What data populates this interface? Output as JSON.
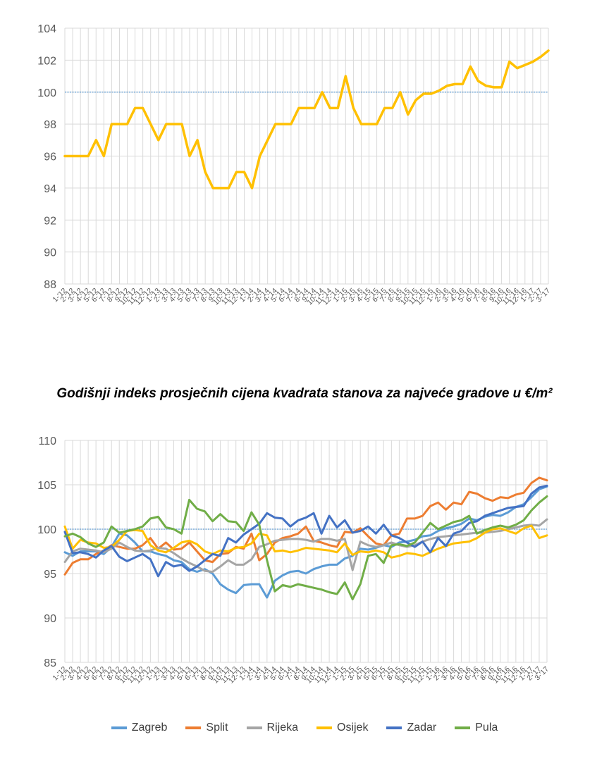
{
  "chart_data": [
    {
      "type": "line",
      "title": "",
      "xlabel": "",
      "ylabel": "",
      "ylim": [
        88,
        104
      ],
      "yticks": [
        88,
        90,
        92,
        94,
        96,
        98,
        100,
        102,
        104
      ],
      "grid": true,
      "reference_line": 100,
      "colors": {
        "series": "#ffc000",
        "reference": "#5b9bd5",
        "grid": "#d9d9d9",
        "axis_text": "#595959"
      },
      "x_tick_labels": [
        "1-'12",
        "2-'12",
        "3-'12",
        "4-'12",
        "5-'12",
        "6-'12",
        "7-'12",
        "8-'12",
        "9-'12",
        "10-'12",
        "11-'12",
        "12-'12",
        "1-'13",
        "2-'13",
        "3-'13",
        "4-'13",
        "5-'13",
        "6-'13",
        "7-'13",
        "8-'13",
        "9-'13",
        "10-'13",
        "11-'13",
        "12-'13",
        "1-'14",
        "2-'14",
        "3-'14",
        "4-'14",
        "5-'14",
        "6-'14",
        "7-'14",
        "8-'14",
        "9-'14",
        "10-'14",
        "11-'14",
        "12-'14",
        "1-'15",
        "2-'15",
        "3-'15",
        "4-'15",
        "5-'15",
        "6-'15",
        "7-'15",
        "8-'15",
        "9-'15",
        "10-'15",
        "11-'15",
        "12-'15",
        "1-'16",
        "2-'16",
        "3-'16",
        "4-'16",
        "5-'16",
        "6-'16",
        "7-'16",
        "8-'16",
        "9-'16",
        "10-'16",
        "11-'16",
        "12-'16",
        "1-'17",
        "2-'17",
        "3-'17"
      ],
      "series": [
        {
          "values": [
            96,
            96,
            96,
            96,
            97,
            96,
            98,
            98,
            98,
            99,
            99,
            98,
            97,
            98,
            98,
            98,
            96,
            97,
            95,
            94,
            94,
            94,
            95,
            95,
            94,
            96,
            97,
            98,
            98,
            98,
            99,
            99,
            99,
            100,
            99,
            99,
            101,
            99,
            98,
            98,
            98,
            99,
            99,
            100,
            98.6,
            99.5,
            99.9,
            99.9,
            100.1,
            100.4,
            100.5,
            100.5,
            101.6,
            100.7,
            100.4,
            100.3,
            100.3,
            101.9,
            101.5,
            101.7,
            101.9,
            102.2,
            102.6
          ]
        }
      ]
    },
    {
      "type": "line",
      "title": "Godišnji indeks prosječnih cijena kvadrata stanova za najveće gradove u €/m²",
      "xlabel": "",
      "ylabel": "",
      "ylim": [
        85,
        110
      ],
      "yticks": [
        85,
        90,
        95,
        100,
        105,
        110
      ],
      "grid": true,
      "reference_line": 100,
      "legend_position": "bottom",
      "x_tick_labels": [
        "1-'12",
        "2-'12",
        "3-'12",
        "4-'12",
        "5-'12",
        "6-'12",
        "7-'12",
        "8-'12",
        "9-'12",
        "10-'12",
        "11-'12",
        "12-'12",
        "1-'13",
        "2-'13",
        "3-'13",
        "4-'13",
        "5-'13",
        "6-'13",
        "7-'13",
        "8-'13",
        "9-'13",
        "10-'13",
        "11-'13",
        "12-'13",
        "1-'14",
        "2-'14",
        "3-'14",
        "4-'14",
        "5-'14",
        "6-'14",
        "7-'14",
        "8-'14",
        "9-'14",
        "10-'14",
        "11-'14",
        "12-'14",
        "1-'15",
        "2-'15",
        "3-'15",
        "4-'15",
        "5-'15",
        "6-'15",
        "7-'15",
        "8-'15",
        "9-'15",
        "10-'15",
        "11-'15",
        "12-'15",
        "1-'16",
        "2-'16",
        "3-'16",
        "4-'16",
        "5-'16",
        "6-'16",
        "7-'16",
        "8-'16",
        "9-'16",
        "10-'16",
        "11-'16",
        "12-'16",
        "1-'17",
        "2-'17",
        "3-'17"
      ],
      "series": [
        {
          "name": "Zagreb",
          "color": "#5b9bd5",
          "values": [
            97.4,
            97,
            97.5,
            97.5,
            97.5,
            97.2,
            98,
            99.5,
            99.3,
            98.5,
            97.5,
            97.5,
            97.2,
            97,
            96.5,
            96.3,
            95.5,
            95.2,
            95.5,
            95,
            93.8,
            93.2,
            92.8,
            93.7,
            93.8,
            93.8,
            92.3,
            94.2,
            94.8,
            95.2,
            95.3,
            95.0,
            95.5,
            95.8,
            96.0,
            96.0,
            96.7,
            97.0,
            97.8,
            97.7,
            97.9,
            98.2,
            98.0,
            98.5,
            98.6,
            98.8,
            99.2,
            99.3,
            99.8,
            100.1,
            100.3,
            100.6,
            101.2,
            101.0,
            101.4,
            101.6,
            101.5,
            101.9,
            102.5,
            102.8,
            103.6,
            104.5,
            104.8
          ]
        },
        {
          "name": "Split",
          "color": "#ed7d31",
          "values": [
            94.9,
            96.2,
            96.6,
            96.6,
            97.2,
            97.6,
            98.2,
            98.0,
            97.8,
            97.8,
            98.2,
            99.0,
            97.8,
            98.5,
            97.7,
            97.8,
            98.5,
            97.5,
            96.5,
            96.3,
            97.2,
            97.3,
            98.0,
            97.8,
            99.5,
            96.5,
            97.2,
            98.5,
            99.0,
            99.2,
            99.5,
            100.3,
            98.7,
            98.5,
            98.2,
            98.0,
            99.7,
            99.6,
            100.1,
            99.2,
            98.4,
            98.2,
            99.3,
            99.5,
            101.2,
            101.2,
            101.5,
            102.6,
            103.0,
            102.2,
            103.0,
            102.8,
            104.2,
            104.0,
            103.5,
            103.2,
            103.6,
            103.5,
            103.9,
            104.1,
            105.2,
            105.8,
            105.5
          ]
        },
        {
          "name": "Rijeka",
          "color": "#a5a5a5",
          "values": [
            96.3,
            97.5,
            97.8,
            97.7,
            97.6,
            97.4,
            97.8,
            98.5,
            98.0,
            97.6,
            97.5,
            97.6,
            97.9,
            97.8,
            97.3,
            96.7,
            96.2,
            95.8,
            95.3,
            95.2,
            95.8,
            96.5,
            96.0,
            96.0,
            96.6,
            98.0,
            98.3,
            98.7,
            98.8,
            98.9,
            98.9,
            98.8,
            98.6,
            98.9,
            98.9,
            98.7,
            98.9,
            95.4,
            98.6,
            98.2,
            98.0,
            98.2,
            98.5,
            98.2,
            98.0,
            98.2,
            98.6,
            98.9,
            99.1,
            99.2,
            99.3,
            99.4,
            99.5,
            99.6,
            99.6,
            99.7,
            99.8,
            100.0,
            100.2,
            100.4,
            100.5,
            100.4,
            101.1
          ]
        },
        {
          "name": "Osijek",
          "color": "#ffc000",
          "values": [
            100.3,
            97.8,
            98.8,
            98.5,
            98.4,
            97.9,
            98.0,
            98.8,
            99.8,
            99.9,
            99.8,
            98.2,
            97.6,
            97.4,
            97.9,
            98.5,
            98.7,
            98.3,
            97.5,
            97.2,
            97.6,
            97.5,
            97.9,
            98.0,
            98.4,
            99.5,
            99.3,
            97.5,
            97.6,
            97.4,
            97.6,
            97.9,
            97.8,
            97.7,
            97.6,
            97.4,
            98.4,
            97.1,
            97.5,
            97.4,
            97.6,
            97.4,
            96.8,
            97.0,
            97.3,
            97.2,
            97.0,
            97.4,
            97.8,
            98.1,
            98.4,
            98.5,
            98.6,
            99.0,
            99.6,
            100.0,
            100.1,
            99.8,
            99.5,
            100.1,
            100.4,
            99.0,
            99.3
          ]
        },
        {
          "name": "Zadar",
          "color": "#4472c4",
          "values": [
            99.7,
            97.3,
            97.4,
            97.2,
            96.8,
            97.6,
            98.1,
            96.9,
            96.4,
            96.8,
            97.2,
            96.6,
            94.7,
            96.3,
            95.8,
            96.0,
            95.3,
            95.8,
            96.5,
            97.2,
            97.0,
            99.0,
            98.5,
            99.4,
            100.0,
            100.6,
            101.8,
            101.3,
            101.2,
            100.3,
            101.0,
            101.3,
            101.8,
            99.5,
            101.5,
            100.2,
            101.0,
            99.6,
            99.8,
            100.3,
            99.5,
            100.5,
            99.3,
            99.0,
            98.5,
            98.0,
            98.6,
            97.4,
            99.0,
            98.1,
            99.5,
            99.8,
            100.7,
            100.9,
            101.5,
            101.8,
            102.1,
            102.4,
            102.5,
            102.6,
            104.0,
            104.7,
            104.9
          ]
        },
        {
          "name": "Pula",
          "color": "#70ad47",
          "values": [
            99.2,
            99.5,
            99.1,
            98.4,
            98.0,
            98.5,
            100.3,
            99.6,
            99.8,
            100.0,
            100.3,
            101.2,
            101.4,
            100.2,
            100.0,
            99.5,
            103.3,
            102.3,
            102.0,
            100.9,
            101.7,
            100.9,
            100.8,
            99.8,
            101.9,
            100.5,
            96.5,
            93.0,
            93.7,
            93.5,
            93.8,
            93.6,
            93.4,
            93.2,
            92.9,
            92.7,
            94.0,
            92.1,
            93.8,
            97.0,
            97.2,
            96.2,
            98.2,
            98.3,
            98.1,
            98.5,
            99.6,
            100.7,
            100.0,
            100.4,
            100.8,
            101.0,
            101.5,
            99.5,
            99.9,
            100.2,
            100.4,
            100.2,
            100.5,
            101.0,
            102.1,
            103.0,
            103.7
          ]
        }
      ]
    }
  ]
}
